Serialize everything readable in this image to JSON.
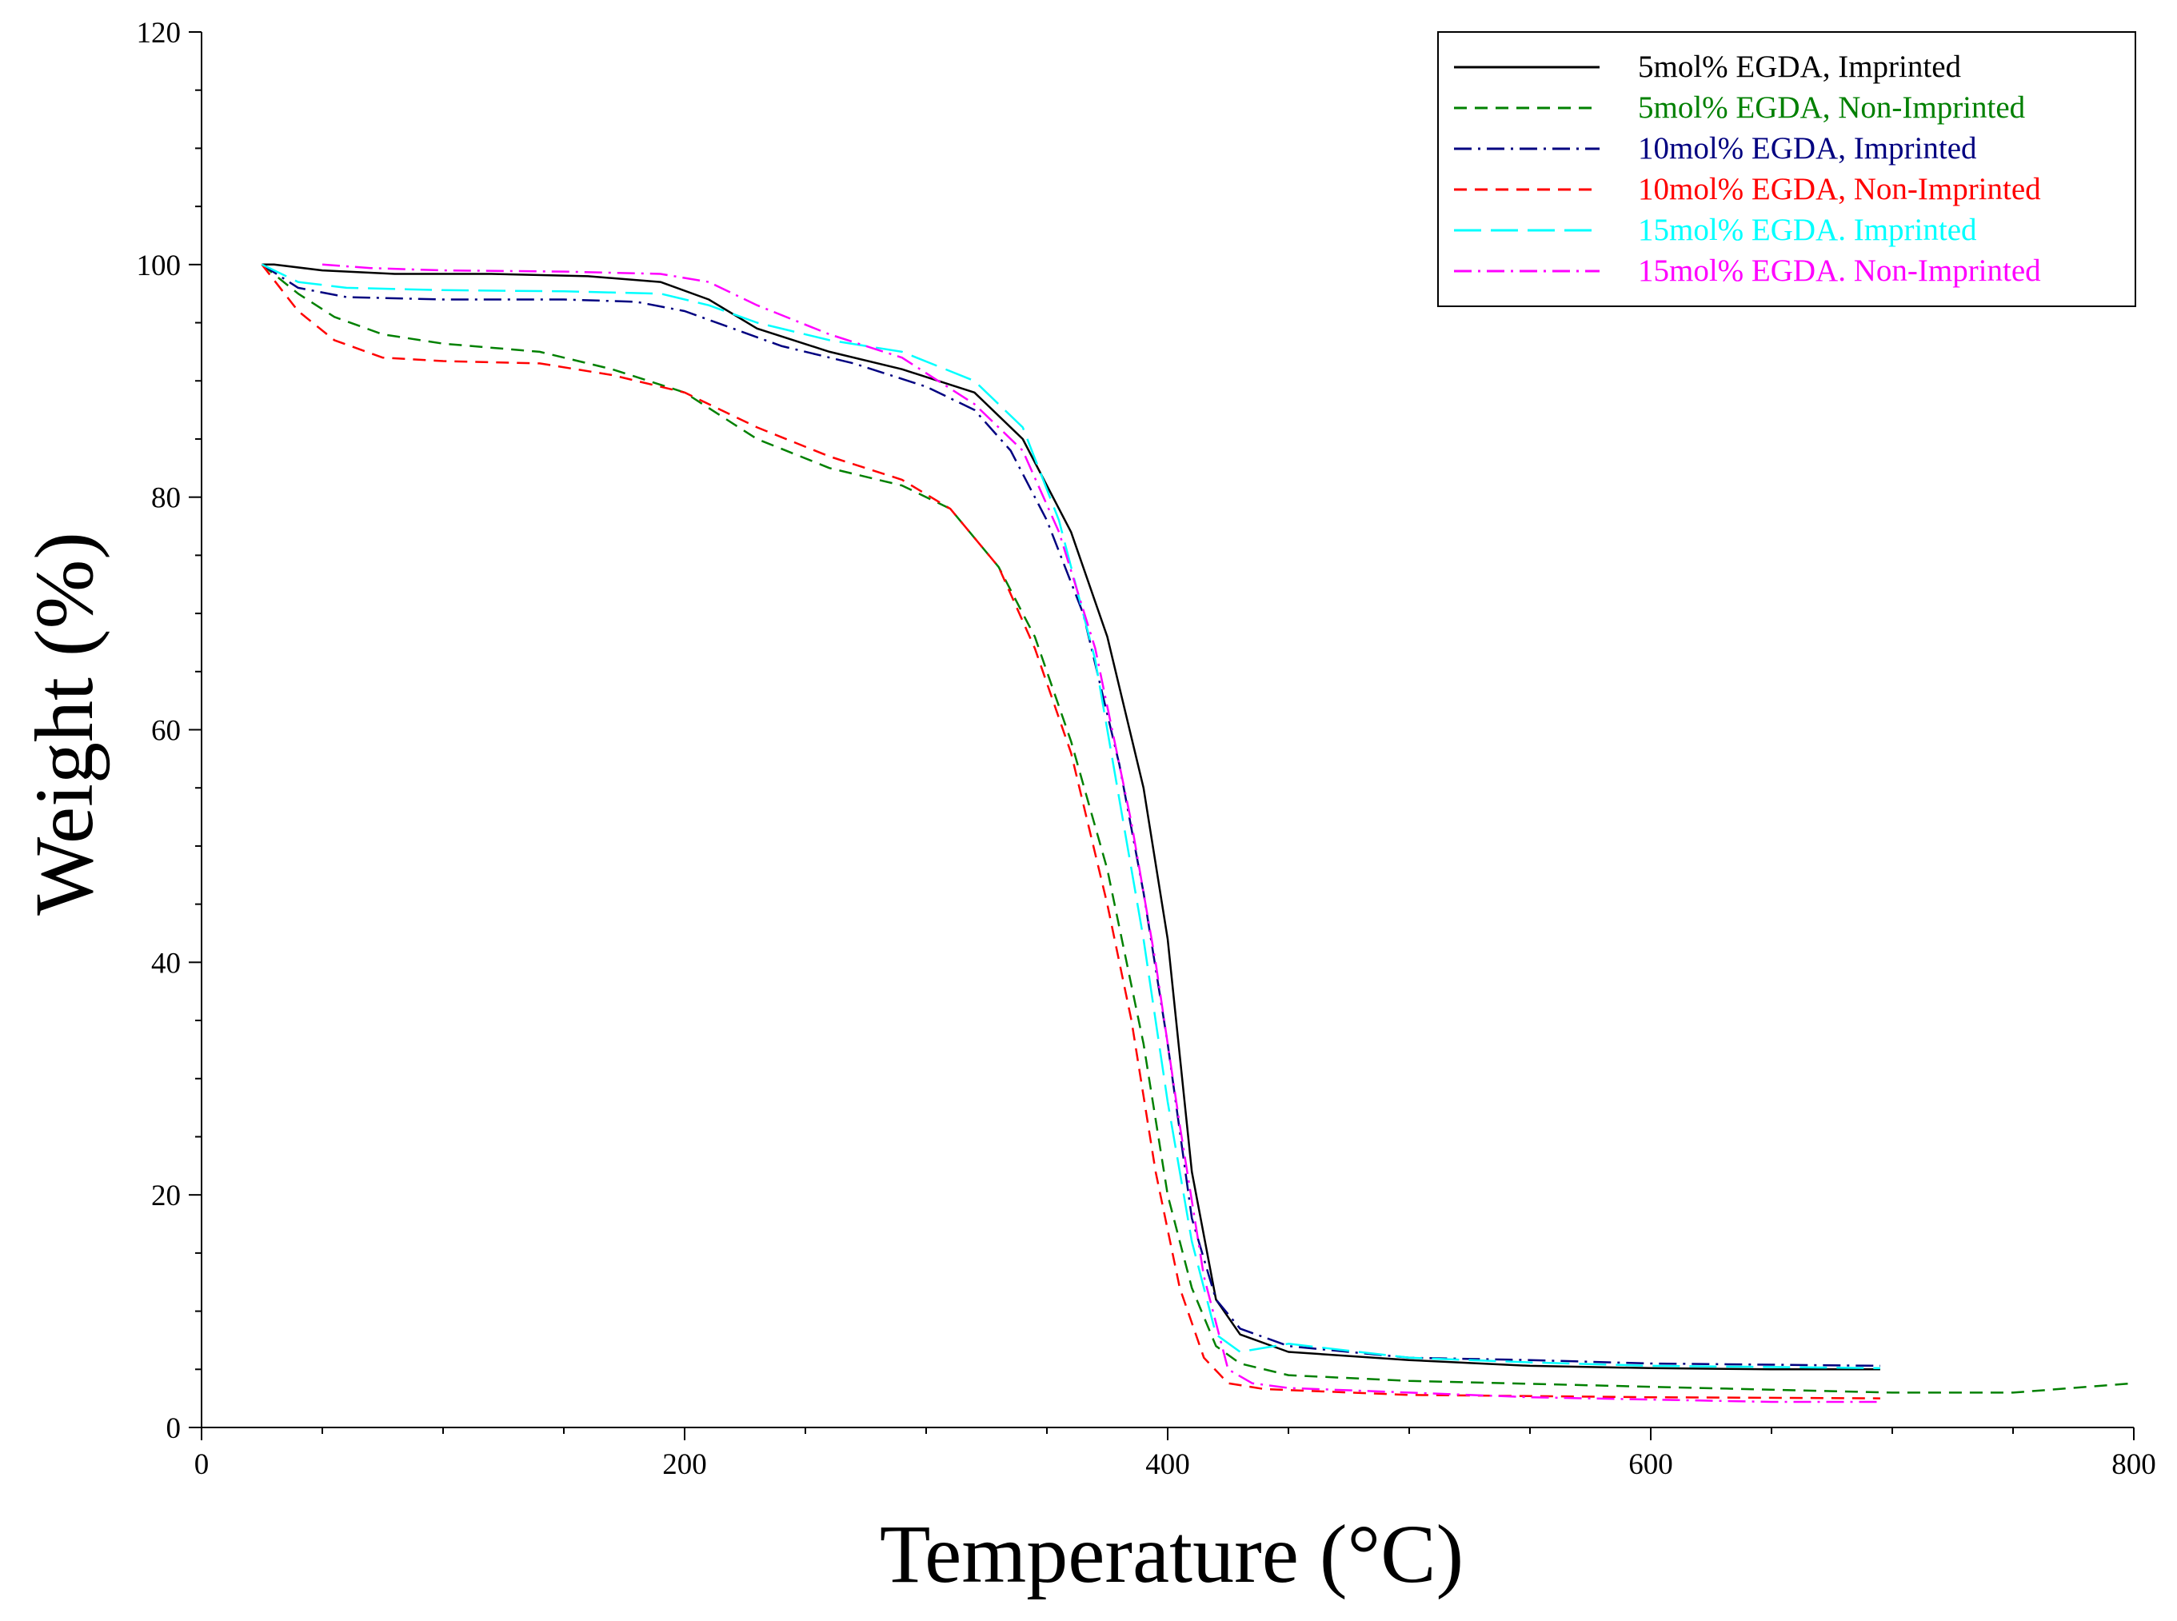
{
  "chart_data": {
    "type": "line",
    "title": "",
    "xlabel": "Temperature (°C)",
    "ylabel": "Weight (%)",
    "xlim": [
      0,
      800
    ],
    "ylim": [
      0,
      120
    ],
    "x_ticks": [
      0,
      200,
      400,
      600,
      800
    ],
    "y_ticks": [
      0,
      20,
      40,
      60,
      80,
      100,
      120
    ],
    "grid": false,
    "legend_position": "top-right",
    "series": [
      {
        "name": "5mol% EGDA, Imprinted",
        "color": "#000000",
        "dash": "solid",
        "points": [
          [
            25,
            100
          ],
          [
            30,
            100
          ],
          [
            50,
            99.5
          ],
          [
            80,
            99.2
          ],
          [
            120,
            99.2
          ],
          [
            160,
            99
          ],
          [
            190,
            98.5
          ],
          [
            210,
            97
          ],
          [
            230,
            94.5
          ],
          [
            260,
            92.5
          ],
          [
            290,
            91
          ],
          [
            320,
            89
          ],
          [
            340,
            85
          ],
          [
            360,
            77
          ],
          [
            375,
            68
          ],
          [
            390,
            55
          ],
          [
            400,
            42
          ],
          [
            410,
            22
          ],
          [
            420,
            11
          ],
          [
            430,
            8
          ],
          [
            450,
            6.5
          ],
          [
            500,
            5.8
          ],
          [
            550,
            5.3
          ],
          [
            600,
            5.1
          ],
          [
            650,
            5
          ],
          [
            695,
            5
          ]
        ]
      },
      {
        "name": "5mol% EGDA, Non-Imprinted",
        "color": "#008000",
        "dash": "dashed",
        "points": [
          [
            25,
            100
          ],
          [
            40,
            97.5
          ],
          [
            55,
            95.5
          ],
          [
            75,
            94
          ],
          [
            100,
            93.2
          ],
          [
            140,
            92.5
          ],
          [
            170,
            91
          ],
          [
            200,
            89
          ],
          [
            230,
            85
          ],
          [
            260,
            82.5
          ],
          [
            290,
            81
          ],
          [
            310,
            79
          ],
          [
            330,
            74
          ],
          [
            345,
            68
          ],
          [
            360,
            59
          ],
          [
            375,
            48
          ],
          [
            390,
            33
          ],
          [
            400,
            20
          ],
          [
            410,
            12
          ],
          [
            420,
            7
          ],
          [
            430,
            5.5
          ],
          [
            450,
            4.5
          ],
          [
            500,
            4
          ],
          [
            600,
            3.5
          ],
          [
            700,
            3
          ],
          [
            750,
            3
          ],
          [
            800,
            3.8
          ]
        ]
      },
      {
        "name": "10mol% EGDA, Imprinted",
        "color": "#000080",
        "dash": "dashdot",
        "points": [
          [
            25,
            100
          ],
          [
            40,
            98
          ],
          [
            60,
            97.2
          ],
          [
            100,
            97
          ],
          [
            150,
            97
          ],
          [
            180,
            96.8
          ],
          [
            200,
            96
          ],
          [
            220,
            94.5
          ],
          [
            240,
            93
          ],
          [
            270,
            91.5
          ],
          [
            300,
            89.5
          ],
          [
            320,
            87.5
          ],
          [
            335,
            84
          ],
          [
            350,
            78
          ],
          [
            365,
            70
          ],
          [
            380,
            57
          ],
          [
            390,
            46
          ],
          [
            400,
            33
          ],
          [
            410,
            18
          ],
          [
            420,
            11
          ],
          [
            430,
            8.5
          ],
          [
            450,
            7
          ],
          [
            500,
            6
          ],
          [
            550,
            5.8
          ],
          [
            600,
            5.5
          ],
          [
            650,
            5.4
          ],
          [
            695,
            5.3
          ]
        ]
      },
      {
        "name": "10mol% EGDA, Non-Imprinted",
        "color": "#ff0000",
        "dash": "dashed",
        "points": [
          [
            25,
            100
          ],
          [
            40,
            96
          ],
          [
            55,
            93.5
          ],
          [
            75,
            92
          ],
          [
            100,
            91.7
          ],
          [
            140,
            91.5
          ],
          [
            170,
            90.5
          ],
          [
            200,
            89
          ],
          [
            230,
            86
          ],
          [
            260,
            83.5
          ],
          [
            290,
            81.5
          ],
          [
            310,
            79
          ],
          [
            330,
            74
          ],
          [
            345,
            67
          ],
          [
            360,
            58
          ],
          [
            375,
            45
          ],
          [
            385,
            35
          ],
          [
            395,
            22
          ],
          [
            405,
            12
          ],
          [
            415,
            6
          ],
          [
            425,
            3.8
          ],
          [
            440,
            3.3
          ],
          [
            500,
            2.8
          ],
          [
            600,
            2.6
          ],
          [
            695,
            2.5
          ]
        ]
      },
      {
        "name": "15mol% EGDA. Imprinted",
        "color": "#00ffff",
        "dash": "longdash",
        "points": [
          [
            25,
            100
          ],
          [
            40,
            98.5
          ],
          [
            60,
            98
          ],
          [
            100,
            97.8
          ],
          [
            150,
            97.7
          ],
          [
            190,
            97.5
          ],
          [
            210,
            96.5
          ],
          [
            230,
            95
          ],
          [
            260,
            93.5
          ],
          [
            290,
            92.5
          ],
          [
            320,
            90
          ],
          [
            340,
            86
          ],
          [
            355,
            78
          ],
          [
            370,
            66
          ],
          [
            380,
            54
          ],
          [
            390,
            42
          ],
          [
            400,
            28
          ],
          [
            410,
            16
          ],
          [
            420,
            8
          ],
          [
            430,
            6.5
          ],
          [
            450,
            7.2
          ],
          [
            500,
            6
          ],
          [
            550,
            5.6
          ],
          [
            600,
            5.3
          ],
          [
            650,
            5.2
          ],
          [
            695,
            5.1
          ]
        ]
      },
      {
        "name": "15mol% EGDA. Non-Imprinted",
        "color": "#ff00ff",
        "dash": "dashdot",
        "points": [
          [
            50,
            100
          ],
          [
            70,
            99.7
          ],
          [
            100,
            99.5
          ],
          [
            150,
            99.4
          ],
          [
            190,
            99.2
          ],
          [
            210,
            98.5
          ],
          [
            230,
            96.5
          ],
          [
            260,
            94
          ],
          [
            290,
            92
          ],
          [
            320,
            88
          ],
          [
            340,
            84
          ],
          [
            355,
            77
          ],
          [
            370,
            67
          ],
          [
            385,
            52
          ],
          [
            395,
            40
          ],
          [
            405,
            26
          ],
          [
            415,
            13
          ],
          [
            425,
            5
          ],
          [
            435,
            3.8
          ],
          [
            450,
            3.4
          ],
          [
            500,
            3
          ],
          [
            550,
            2.6
          ],
          [
            600,
            2.4
          ],
          [
            650,
            2.2
          ],
          [
            695,
            2.2
          ]
        ]
      }
    ]
  }
}
